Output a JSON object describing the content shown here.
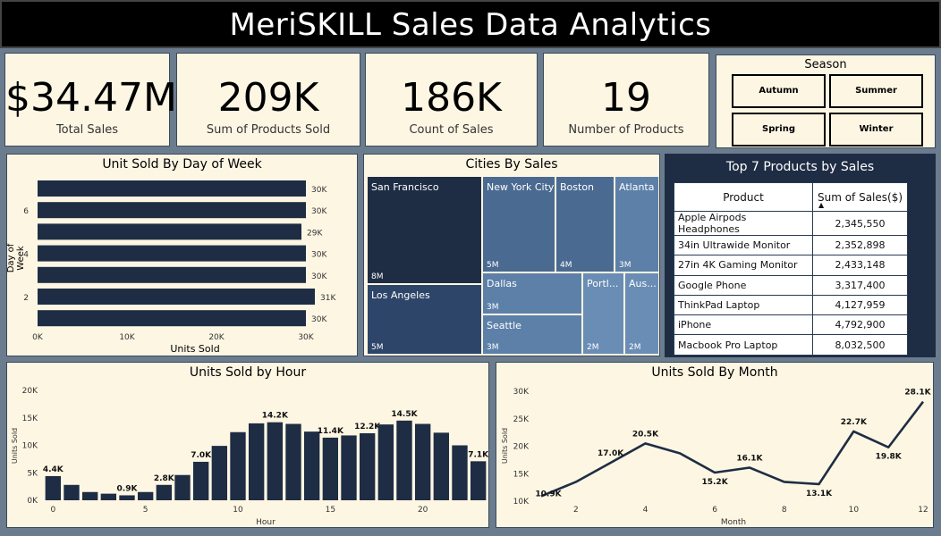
{
  "title": "MeriSKILL Sales Data Analytics",
  "kpis": [
    {
      "value": "$34.47M",
      "label": "Total Sales"
    },
    {
      "value": "209K",
      "label": "Sum of Products Sold"
    },
    {
      "value": "186K",
      "label": "Count of Sales"
    },
    {
      "value": "19",
      "label": "Number of Products"
    }
  ],
  "season": {
    "title": "Season",
    "options": [
      "Autumn",
      "Summer",
      "Spring",
      "Winter"
    ]
  },
  "day_chart": {
    "title": "Unit Sold By Day of Week",
    "xlabel": "Units Sold",
    "ylabel": "Day of Week",
    "x_ticks": [
      "0K",
      "10K",
      "20K",
      "30K"
    ],
    "y_ticks": [
      "6",
      "4",
      "2"
    ],
    "bar_labels": [
      "30K",
      "30K",
      "29K",
      "30K",
      "30K",
      "31K",
      "30K"
    ]
  },
  "cities": {
    "title": "Cities By Sales",
    "items": [
      {
        "name": "San Francisco",
        "value": "8M"
      },
      {
        "name": "New York City",
        "value": "5M"
      },
      {
        "name": "Boston",
        "value": "4M"
      },
      {
        "name": "Atlanta",
        "value": "3M"
      },
      {
        "name": "Los Angeles",
        "value": "5M"
      },
      {
        "name": "Dallas",
        "value": "3M"
      },
      {
        "name": "Seattle",
        "value": "3M"
      },
      {
        "name": "Portl...",
        "value": "2M"
      },
      {
        "name": "Aus...",
        "value": "2M"
      }
    ]
  },
  "top_products": {
    "title": "Top 7 Products by Sales",
    "headers": [
      "Product",
      "Sum of Sales($)"
    ],
    "rows": [
      [
        "Apple Airpods Headphones",
        "2,345,550"
      ],
      [
        "34in Ultrawide Monitor",
        "2,352,898"
      ],
      [
        "27in 4K Gaming Monitor",
        "2,433,148"
      ],
      [
        "Google Phone",
        "3,317,400"
      ],
      [
        "ThinkPad Laptop",
        "4,127,959"
      ],
      [
        "iPhone",
        "4,792,900"
      ],
      [
        "Macbook Pro Laptop",
        "8,032,500"
      ]
    ]
  },
  "colors": {
    "navy": "#1e2d44",
    "panel": "#fdf6e3",
    "treemap": [
      "#1e2d44",
      "#4a6a91",
      "#4a6a91",
      "#5d80a8",
      "#2d4569",
      "#5d80a8",
      "#5d80a8",
      "#6a8db5",
      "#6a8db5"
    ]
  },
  "chart_data": [
    {
      "type": "bar",
      "title": "Unit Sold By Day of Week",
      "orientation": "horizontal",
      "xlabel": "Units Sold",
      "ylabel": "Day of Week",
      "categories": [
        7,
        6,
        5,
        4,
        3,
        2,
        1
      ],
      "values": [
        30000,
        30000,
        29500,
        30000,
        30000,
        31000,
        30000
      ],
      "xlim": [
        0,
        30000
      ]
    },
    {
      "type": "bar",
      "title": "Units Sold by Hour",
      "xlabel": "Hour",
      "ylabel": "Units Sold",
      "ylim": [
        0,
        20000
      ],
      "y_ticks": [
        "0K",
        "5K",
        "10K",
        "15K",
        "20K"
      ],
      "x_ticks": [
        "0",
        "5",
        "10",
        "15",
        "20"
      ],
      "categories": [
        0,
        1,
        2,
        3,
        4,
        5,
        6,
        7,
        8,
        9,
        10,
        11,
        12,
        13,
        14,
        15,
        16,
        17,
        18,
        19,
        20,
        21,
        22,
        23
      ],
      "values": [
        4400,
        2800,
        1500,
        1200,
        900,
        1500,
        2800,
        4600,
        7000,
        9900,
        12400,
        14000,
        14200,
        13900,
        12500,
        11400,
        11800,
        12200,
        13800,
        14500,
        13900,
        12300,
        10000,
        7100
      ],
      "data_labels": {
        "0": "4.4K",
        "4": "0.9K",
        "6": "2.8K",
        "8": "7.0K",
        "12": "14.2K",
        "15": "11.4K",
        "17": "12.2K",
        "19": "14.5K",
        "23": "7.1K"
      }
    },
    {
      "type": "line",
      "title": "Units Sold By Month",
      "xlabel": "Month",
      "ylabel": "Units Sold",
      "ylim": [
        10000,
        30000
      ],
      "y_ticks": [
        "10K",
        "15K",
        "20K",
        "25K",
        "30K"
      ],
      "x_ticks": [
        "2",
        "4",
        "6",
        "8",
        "10",
        "12"
      ],
      "x": [
        1,
        2,
        3,
        4,
        5,
        6,
        7,
        8,
        9,
        10,
        11,
        12
      ],
      "values": [
        10900,
        13500,
        17000,
        20500,
        18700,
        15200,
        16100,
        13500,
        13100,
        22700,
        19800,
        28100
      ],
      "data_labels": {
        "1": "10.9K",
        "3": "17.0K",
        "4": "20.5K",
        "6": "15.2K",
        "7": "16.1K",
        "9": "13.1K",
        "10": "22.7K",
        "11": "19.8K",
        "12": "28.1K"
      }
    }
  ]
}
